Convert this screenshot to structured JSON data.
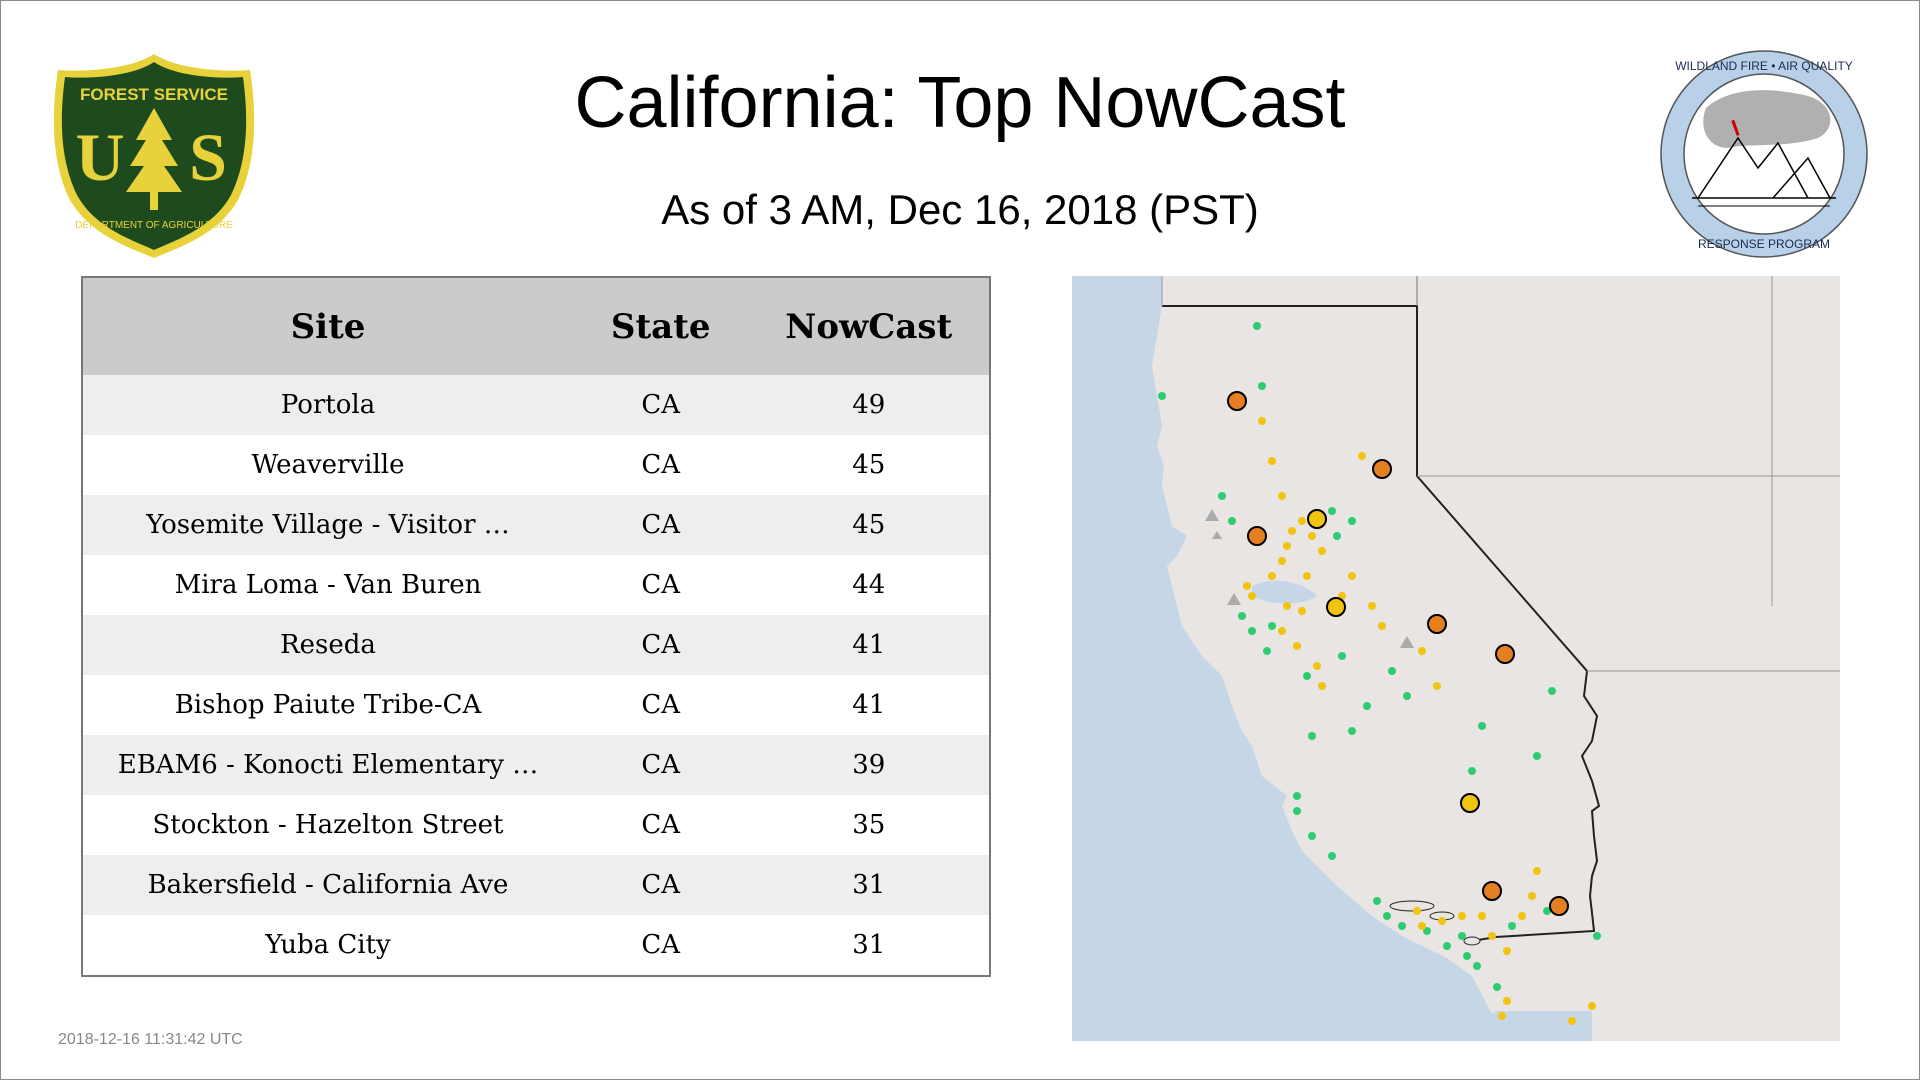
{
  "title": "California: Top NowCast",
  "subtitle": "As of  3 AM, Dec 16, 2018 (PST)",
  "logos": {
    "usfs": {
      "top_text": "FOREST SERVICE",
      "bottom_text": "DEPARTMENT OF AGRICULTURE",
      "left_letter": "U",
      "right_letter": "S",
      "color_dark": "#1e4b1e",
      "color_gold": "#e8d23c"
    },
    "wfaq": {
      "top_text": "WILDLAND FIRE • AIR QUALITY",
      "bottom_text": "RESPONSE PROGRAM",
      "ring_color": "#b8d0e8"
    }
  },
  "table": {
    "headers": [
      "Site",
      "State",
      "NowCast"
    ],
    "rows": [
      {
        "site": "Portola",
        "state": "CA",
        "nowcast": "49"
      },
      {
        "site": "Weaverville",
        "state": "CA",
        "nowcast": "45"
      },
      {
        "site": "Yosemite Village - Visitor …",
        "state": "CA",
        "nowcast": "45"
      },
      {
        "site": "Mira Loma - Van Buren",
        "state": "CA",
        "nowcast": "44"
      },
      {
        "site": "Reseda",
        "state": "CA",
        "nowcast": "41"
      },
      {
        "site": "Bishop Paiute Tribe-CA",
        "state": "CA",
        "nowcast": "41"
      },
      {
        "site": "EBAM6 - Konocti Elementary …",
        "state": "CA",
        "nowcast": "39"
      },
      {
        "site": "Stockton - Hazelton Street",
        "state": "CA",
        "nowcast": "35"
      },
      {
        "site": "Bakersfield - California Ave",
        "state": "CA",
        "nowcast": "31"
      },
      {
        "site": "Yuba City",
        "state": "CA",
        "nowcast": "31"
      }
    ]
  },
  "map": {
    "colors": {
      "ocean": "#c5d7e6",
      "land": "#e8e5e2",
      "good": "#2ecc71",
      "moderate": "#f1c40f",
      "usg": "#e67e22",
      "no_data": "#aaaaaa"
    }
  },
  "timestamp": "2018-12-16 11:31:42 UTC"
}
